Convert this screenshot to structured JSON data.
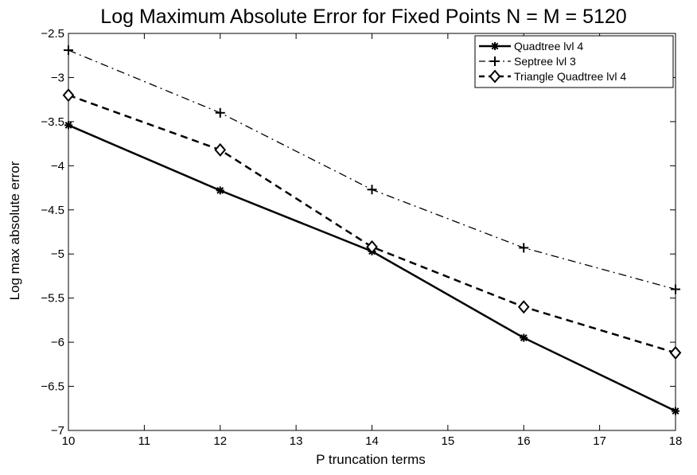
{
  "chart_data": {
    "type": "line",
    "title": "Log Maximum Absolute Error for Fixed Points N = M = 5120",
    "xlabel": "P truncation terms",
    "ylabel": "Log max absolute error",
    "x": [
      10,
      12,
      14,
      16,
      18
    ],
    "xlim": [
      10,
      18
    ],
    "ylim": [
      -7,
      -2.5
    ],
    "xticks": [
      10,
      11,
      12,
      13,
      14,
      15,
      16,
      17,
      18
    ],
    "yticks": [
      -2.5,
      -3,
      -3.5,
      -4,
      -4.5,
      -5,
      -5.5,
      -6,
      -6.5,
      -7
    ],
    "xtick_labels": [
      "10",
      "11",
      "12",
      "13",
      "14",
      "15",
      "16",
      "17",
      "18"
    ],
    "ytick_labels": [
      "−2.5",
      "−3",
      "−3.5",
      "−4",
      "−4.5",
      "−5",
      "−5.5",
      "−6",
      "−6.5",
      "−7"
    ],
    "grid": false,
    "legend_position": "top-right",
    "series": [
      {
        "name": "Quadtree lvl 4",
        "values": [
          -3.54,
          -4.28,
          -4.97,
          -5.95,
          -6.78
        ],
        "line_style": "solid",
        "marker": "asterisk",
        "color": "#000000"
      },
      {
        "name": "Septree lvl 3",
        "values": [
          -2.69,
          -3.4,
          -4.27,
          -4.93,
          -5.4
        ],
        "line_style": "dash-dot",
        "marker": "plus",
        "color": "#000000"
      },
      {
        "name": "Triangle Quadtree lvl 4",
        "values": [
          -3.2,
          -3.82,
          -4.92,
          -5.6,
          -6.12
        ],
        "line_style": "dashed",
        "marker": "diamond",
        "color": "#000000"
      }
    ]
  }
}
